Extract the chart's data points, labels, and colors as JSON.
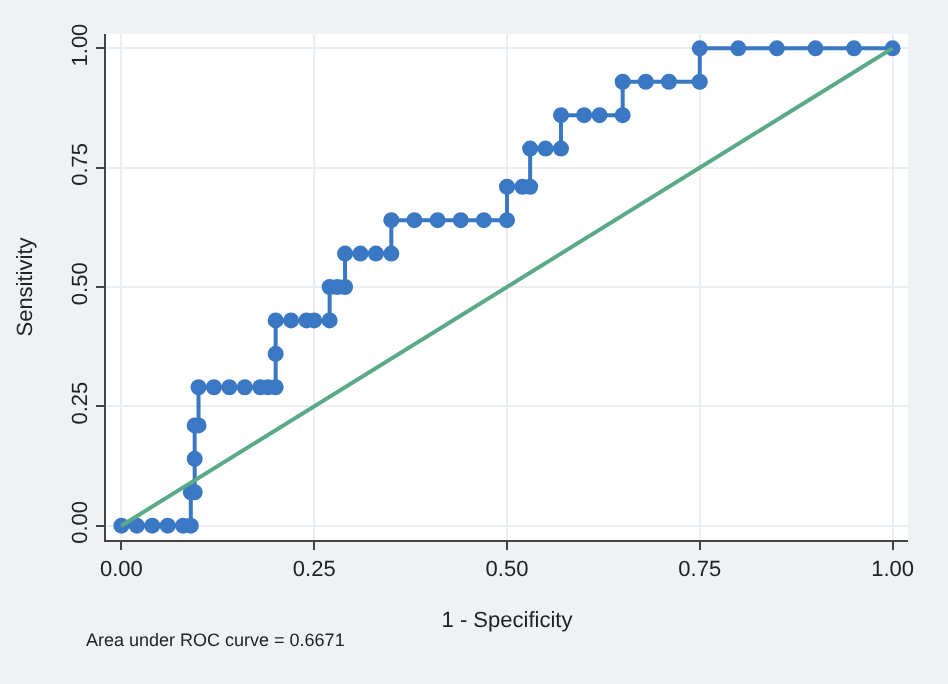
{
  "chart_data": {
    "type": "line",
    "xlabel": "1 - Specificity",
    "ylabel": "Sensitivity",
    "annotations": [
      "Area under ROC curve = 0.6671"
    ],
    "xlim": [
      -0.02,
      1.02
    ],
    "ylim": [
      -0.03,
      1.03
    ],
    "xticks": [
      {
        "value": 0,
        "label": "0.00"
      },
      {
        "value": 0.25,
        "label": "0.25"
      },
      {
        "value": 0.5,
        "label": "0.50"
      },
      {
        "value": 0.75,
        "label": "0.75"
      },
      {
        "value": 1,
        "label": "1.00"
      }
    ],
    "yticks": [
      {
        "value": 0,
        "label": "0.00"
      },
      {
        "value": 0.25,
        "label": "0.25"
      },
      {
        "value": 0.5,
        "label": "0.50"
      },
      {
        "value": 0.75,
        "label": "0.75"
      },
      {
        "value": 1,
        "label": "1.00"
      }
    ],
    "grid": true,
    "series": [
      {
        "color": "#3a78c4",
        "marker": "circle",
        "x": [
          0,
          0.02,
          0.04,
          0.06,
          0.08,
          0.09,
          0.09,
          0.095,
          0.095,
          0.095,
          0.1,
          0.1,
          0.12,
          0.14,
          0.16,
          0.18,
          0.19,
          0.2,
          0.2,
          0.2,
          0.22,
          0.24,
          0.25,
          0.27,
          0.27,
          0.28,
          0.29,
          0.29,
          0.31,
          0.33,
          0.35,
          0.35,
          0.38,
          0.41,
          0.44,
          0.47,
          0.5,
          0.5,
          0.52,
          0.53,
          0.53,
          0.55,
          0.57,
          0.57,
          0.6,
          0.62,
          0.65,
          0.65,
          0.68,
          0.71,
          0.75,
          0.75,
          0.8,
          0.85,
          0.9,
          0.95,
          1.0
        ],
        "values": [
          0,
          0,
          0,
          0,
          0,
          0,
          0.07,
          0.07,
          0.14,
          0.21,
          0.21,
          0.29,
          0.29,
          0.29,
          0.29,
          0.29,
          0.29,
          0.29,
          0.36,
          0.43,
          0.43,
          0.43,
          0.43,
          0.43,
          0.5,
          0.5,
          0.5,
          0.57,
          0.57,
          0.57,
          0.57,
          0.64,
          0.64,
          0.64,
          0.64,
          0.64,
          0.64,
          0.71,
          0.71,
          0.71,
          0.79,
          0.79,
          0.79,
          0.86,
          0.86,
          0.86,
          0.86,
          0.93,
          0.93,
          0.93,
          0.93,
          1,
          1,
          1,
          1,
          1,
          1
        ]
      },
      {
        "color": "#5aaa88",
        "marker": "none",
        "x": [
          0,
          1
        ],
        "values": [
          0,
          1
        ]
      }
    ]
  }
}
